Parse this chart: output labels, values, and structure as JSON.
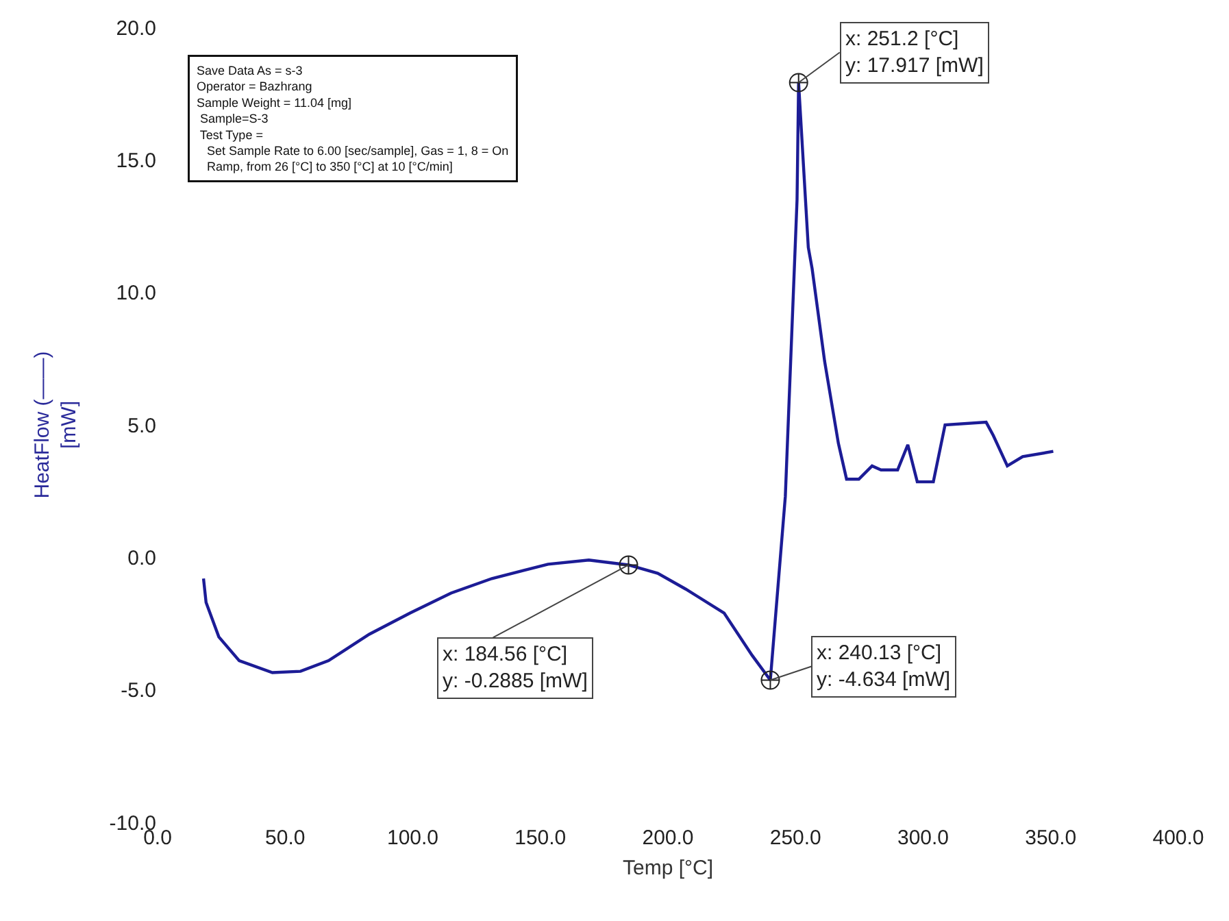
{
  "chart_data": {
    "type": "line",
    "xlabel": "Temp [°C]",
    "ylabel": "HeatFlow (——)\n[mW]",
    "xlim": [
      0,
      400
    ],
    "xticks": [
      {
        "value": 0,
        "label": "0.0"
      },
      {
        "value": 50,
        "label": "50.0"
      },
      {
        "value": 100,
        "label": "100.0"
      },
      {
        "value": 150,
        "label": "150.0"
      },
      {
        "value": 200,
        "label": "200.0"
      },
      {
        "value": 250,
        "label": "250.0"
      },
      {
        "value": 300,
        "label": "300.0"
      },
      {
        "value": 350,
        "label": "350.0"
      },
      {
        "value": 400,
        "label": "400.0"
      }
    ],
    "ylim": [
      -10,
      20
    ],
    "yticks": [
      {
        "value": -10,
        "label": "-10.0"
      },
      {
        "value": -5,
        "label": "-5.0"
      },
      {
        "value": 0,
        "label": "0.0"
      },
      {
        "value": 5,
        "label": "5.0"
      },
      {
        "value": 10,
        "label": "10.0"
      },
      {
        "value": 15,
        "label": "15.0"
      },
      {
        "value": 20,
        "label": "20.0"
      }
    ],
    "marker": "none",
    "line_style": "solid",
    "x": [
      18,
      19,
      24,
      32,
      45,
      56,
      67,
      83,
      99,
      115,
      131,
      153,
      169,
      184.56,
      196,
      207,
      222,
      233,
      240.13,
      246,
      250.6,
      251.2,
      255,
      256.5,
      261.4,
      266.8,
      270,
      274.8,
      280,
      283.5,
      290,
      294,
      297.7,
      304,
      308.6,
      324.7,
      327.5,
      333,
      339,
      351
    ],
    "series": [
      {
        "color": "#1c1c96",
        "values": [
          -0.8,
          -1.7,
          -3.0,
          -3.9,
          -4.35,
          -4.3,
          -3.9,
          -2.9,
          -2.1,
          -1.35,
          -0.8,
          -0.26,
          -0.1,
          -0.2885,
          -0.6,
          -1.2,
          -2.1,
          -3.7,
          -4.634,
          2.3,
          13.5,
          17.917,
          11.7,
          10.9,
          7.4,
          4.3,
          2.95,
          2.95,
          3.45,
          3.3,
          3.3,
          4.25,
          2.85,
          2.85,
          5.0,
          5.1,
          4.6,
          3.45,
          3.8,
          4.0
        ]
      }
    ],
    "annotations": [
      "Save Data As = s-3\nOperator = Bazhrang\nSample Weight = 11.04 [mg]\n Sample=S-3\n Test Type =\n   Set Sample Rate to 6.00 [sec/sample], Gas = 1, 8 = On\n   Ramp, from 26 [°C] to 350 [°C] at 10 [°C/min]",
      {
        "text": "x: 251.2 [°C]\ny: 17.917 [mW]",
        "x": 251.2,
        "y": 17.917
      },
      {
        "text": "x: 184.56 [°C]\ny: -0.2885 [mW]",
        "x": 184.56,
        "y": -0.2885
      },
      {
        "text": "x: 240.13 [°C]\ny: -4.634 [mW]",
        "x": 240.13,
        "y": -4.634
      }
    ]
  }
}
